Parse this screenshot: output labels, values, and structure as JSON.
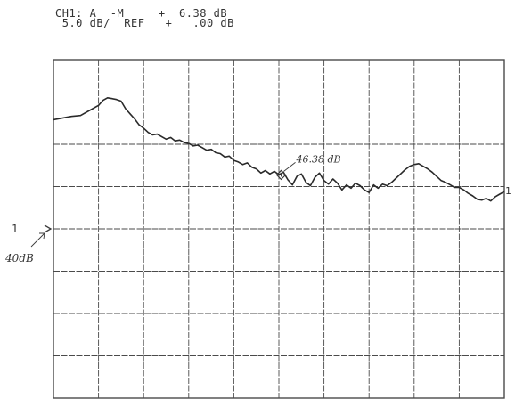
{
  "header": {
    "line1": "CH1: A  -M     +  6.38 dB",
    "line2": " 5.0 dB/  REF   +   .00 dB"
  },
  "annotations": {
    "marker_label": "46.38 dB",
    "ref_level_label": "40dB",
    "ref_marker_number": "1",
    "trace_end_number": "1"
  },
  "colors": {
    "trace": "#2a2a2a",
    "grid": "#4a4a4a",
    "ink": "#3a3a3a"
  },
  "chart_data": {
    "type": "line",
    "title": "",
    "xlabel": "",
    "ylabel": "",
    "grid": true,
    "divisions": {
      "x": 10,
      "y": 8
    },
    "scale_db_per_div": 5.0,
    "reference_db": 40,
    "ylim": [
      20,
      60
    ],
    "xlim": [
      0,
      10
    ],
    "marker": {
      "x": 5.05,
      "y": 46.38,
      "label": "46.38 dB"
    },
    "series": [
      {
        "name": "",
        "x": [
          0,
          0.2,
          0.4,
          0.6,
          0.8,
          1.0,
          1.1,
          1.2,
          1.3,
          1.4,
          1.5,
          1.6,
          1.7,
          1.8,
          1.9,
          2.0,
          2.1,
          2.2,
          2.3,
          2.4,
          2.5,
          2.6,
          2.7,
          2.8,
          2.9,
          3.0,
          3.1,
          3.2,
          3.3,
          3.4,
          3.5,
          3.6,
          3.7,
          3.8,
          3.9,
          4.0,
          4.1,
          4.2,
          4.3,
          4.4,
          4.5,
          4.6,
          4.7,
          4.8,
          4.9,
          5.0,
          5.1,
          5.2,
          5.3,
          5.4,
          5.5,
          5.6,
          5.7,
          5.8,
          5.9,
          6.0,
          6.1,
          6.2,
          6.3,
          6.4,
          6.5,
          6.6,
          6.7,
          6.8,
          6.9,
          7.0,
          7.1,
          7.2,
          7.3,
          7.4,
          7.5,
          7.6,
          7.7,
          7.8,
          7.9,
          8.0,
          8.1,
          8.2,
          8.3,
          8.4,
          8.5,
          8.6,
          8.7,
          8.8,
          8.9,
          9.0,
          9.1,
          9.2,
          9.3,
          9.4,
          9.5,
          9.6,
          9.7,
          9.8,
          9.9,
          10.0
        ],
        "values": [
          52.9,
          53.1,
          53.3,
          53.4,
          54.0,
          54.6,
          55.2,
          55.5,
          55.4,
          55.3,
          55.1,
          54.2,
          53.6,
          53.0,
          52.3,
          51.9,
          51.4,
          51.1,
          51.2,
          50.9,
          50.6,
          50.8,
          50.4,
          50.5,
          50.2,
          50.1,
          49.8,
          49.9,
          49.6,
          49.3,
          49.4,
          49.0,
          48.9,
          48.5,
          48.6,
          48.1,
          47.9,
          47.6,
          47.8,
          47.3,
          47.1,
          46.6,
          46.9,
          46.5,
          46.8,
          46.4,
          46.7,
          45.8,
          45.2,
          46.2,
          46.5,
          45.5,
          45.1,
          46.1,
          46.6,
          45.7,
          45.3,
          45.9,
          45.4,
          44.6,
          45.2,
          44.8,
          45.4,
          45.1,
          44.6,
          44.3,
          45.2,
          44.8,
          45.3,
          45.1,
          45.5,
          46.0,
          46.5,
          47.0,
          47.4,
          47.6,
          47.7,
          47.4,
          47.1,
          46.7,
          46.2,
          45.7,
          45.5,
          45.2,
          44.9,
          44.9,
          44.6,
          44.2,
          43.9,
          43.5,
          43.4,
          43.6,
          43.3,
          43.8,
          44.1,
          44.4
        ]
      }
    ]
  }
}
